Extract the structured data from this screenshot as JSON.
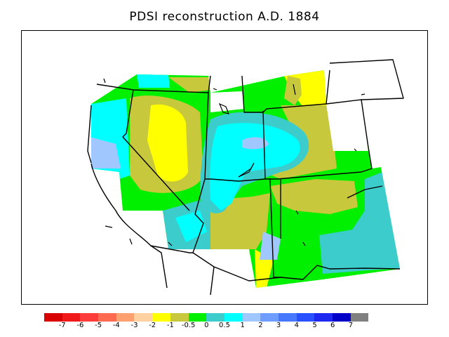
{
  "title": "PDSI reconstruction A.D. 1884",
  "legend": {
    "colors": [
      "#d80000",
      "#f01818",
      "#ff3c3c",
      "#ff6a50",
      "#ffa070",
      "#ffd0a0",
      "#ffff00",
      "#c8c83c",
      "#00f000",
      "#3ccccc",
      "#00ffff",
      "#a0c8ff",
      "#6e9cff",
      "#4678ff",
      "#2850ff",
      "#1c28f0",
      "#0000c8",
      "#808080"
    ],
    "tick_labels": [
      "-7",
      "-6",
      "-5",
      "-4",
      "-3",
      "-2",
      "-1",
      "-0.5",
      "0",
      "0.5",
      "1",
      "2",
      "3",
      "4",
      "5",
      "6",
      "7"
    ]
  }
}
